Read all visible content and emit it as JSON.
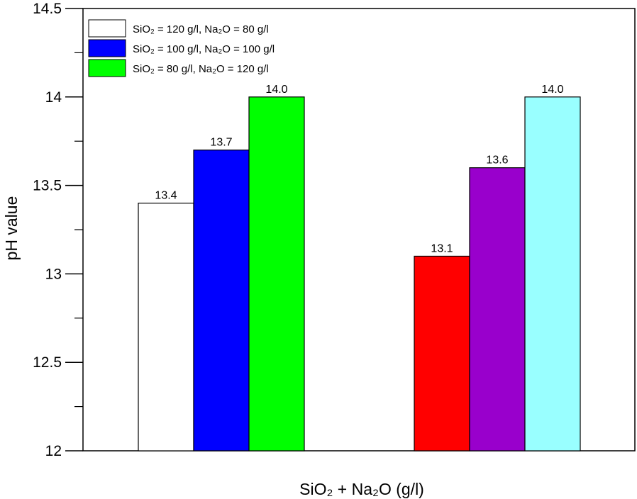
{
  "chart_data": {
    "type": "bar",
    "xlabel": "SiO₂ + Na₂O  (g/l)",
    "ylabel": "pH value",
    "ylim": [
      12,
      14.5
    ],
    "yticks_major": [
      "12",
      "12.5",
      "13",
      "13.5",
      "14",
      "14.5"
    ],
    "yticks_major_values": [
      12,
      12.5,
      13,
      13.5,
      14,
      14.5
    ],
    "yticks_minor_values": [
      12.25,
      12.75,
      13.25,
      13.75,
      14.25
    ],
    "grid": false,
    "legend_position": "top-left",
    "legend": [
      {
        "text": "SiO₂ = 120 g/l, Na₂O =   80 g/l",
        "color": "#ffffff"
      },
      {
        "text": "SiO₂ = 100 g/l, Na₂O = 100 g/l",
        "color": "#0000ff"
      },
      {
        "text": "SiO₂ =   80 g/l, Na₂O = 120 g/l",
        "color": "#00ff00"
      }
    ],
    "groups": [
      {
        "bars": [
          {
            "value": 13.4,
            "label": "13.4",
            "color": "#ffffff"
          },
          {
            "value": 13.7,
            "label": "13.7",
            "color": "#0000ff"
          },
          {
            "value": 14.0,
            "label": "14.0",
            "color": "#00ff00"
          }
        ]
      },
      {
        "bars": [
          {
            "value": 13.1,
            "label": "13.1",
            "color": "#ff0000"
          },
          {
            "value": 13.6,
            "label": "13.6",
            "color": "#9900cc"
          },
          {
            "value": 14.0,
            "label": "14.0",
            "color": "#99ffff"
          }
        ]
      }
    ]
  }
}
